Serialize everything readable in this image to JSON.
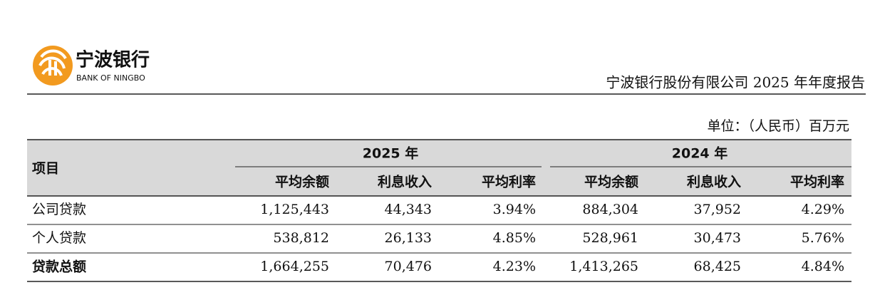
{
  "header": {
    "logo_name": "宁波银行",
    "logo_subtitle": "BANK OF NINGBO",
    "report_title": "宁波银行股份有限公司 2025 年年度报告"
  },
  "unit": "单位：（人民币）百万元",
  "table": {
    "item_header": "项目",
    "groups": [
      "2025 年",
      "2024 年"
    ],
    "columns": [
      "平均余额",
      "利息收入",
      "平均利率",
      "平均余额",
      "利息收入",
      "平均利率"
    ],
    "rows": [
      [
        "公司贷款",
        "1,125,443",
        "44,343",
        "3.94%",
        "884,304",
        "37,952",
        "4.29%"
      ],
      [
        "个人贷款",
        "538,812",
        "26,133",
        "4.85%",
        "528,961",
        "30,473",
        "5.76%"
      ],
      [
        "贷款总额",
        "1,664,255",
        "70,476",
        "4.23%",
        "1,413,265",
        "68,425",
        "4.84%"
      ]
    ]
  }
}
